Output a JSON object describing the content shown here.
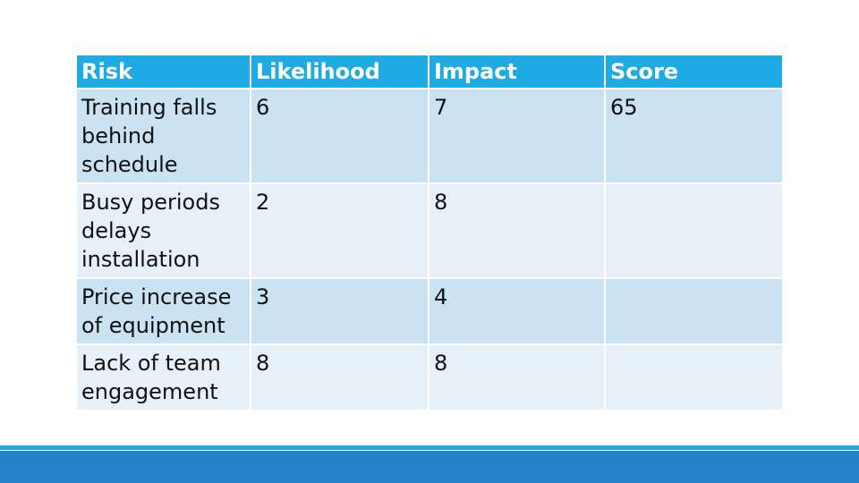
{
  "table": {
    "headers": [
      "Risk",
      "Likelihood",
      "Impact",
      "Score"
    ],
    "rows": [
      [
        "Training falls behind schedule",
        "6",
        "7",
        "65"
      ],
      [
        "Busy periods delays installation",
        "2",
        "8",
        ""
      ],
      [
        "Price increase of equipment",
        "3",
        "4",
        ""
      ],
      [
        "Lack of team engagement",
        "8",
        "8",
        ""
      ]
    ]
  },
  "colors": {
    "header_bg": "#1eaae3",
    "row_odd_bg": "#cbe2f3",
    "row_even_bg": "#e6f0f9",
    "footer_thin": "#1eaae3",
    "footer_bar": "#2682c6"
  }
}
